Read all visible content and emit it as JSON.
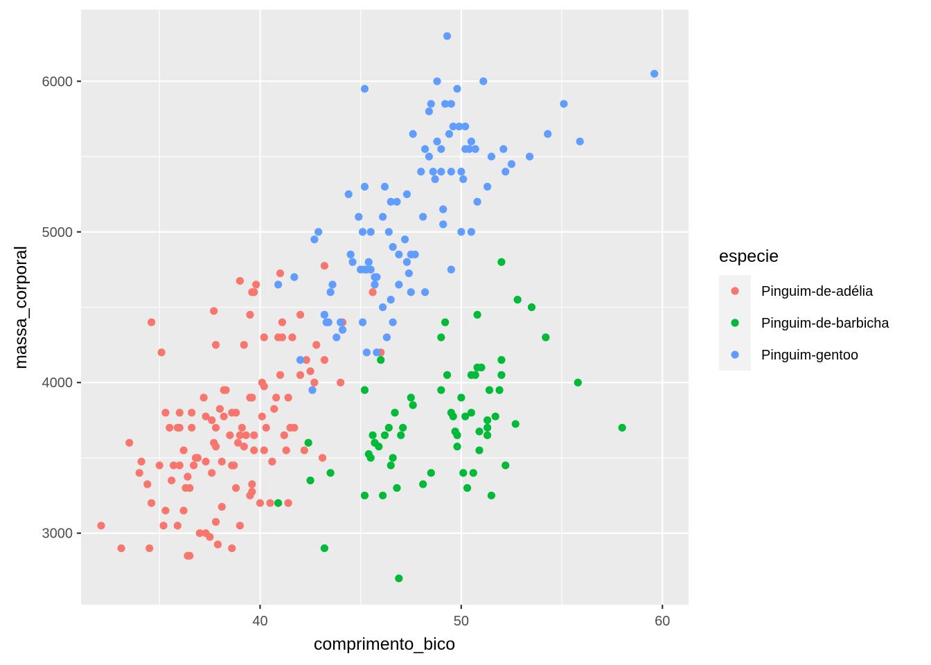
{
  "chart_data": {
    "type": "scatter",
    "xlabel": "comprimento_bico",
    "ylabel": "massa_corporal",
    "xlim": [
      31.1,
      61.3
    ],
    "ylim": [
      2525,
      6475
    ],
    "x_ticks": [
      40,
      50,
      60
    ],
    "x_tick_labels": [
      "40",
      "50",
      "60"
    ],
    "y_ticks": [
      3000,
      4000,
      5000,
      6000
    ],
    "y_tick_labels": [
      "3000",
      "4000",
      "5000",
      "6000"
    ],
    "grid": true,
    "legend": {
      "title": "especie",
      "position": "right"
    },
    "series": [
      {
        "name": "Pinguim-de-adélia",
        "color": "#F8766D",
        "points": [
          [
            32.1,
            3050
          ],
          [
            33.1,
            2900
          ],
          [
            33.5,
            3600
          ],
          [
            34.0,
            3400
          ],
          [
            34.1,
            3475
          ],
          [
            34.4,
            3325
          ],
          [
            34.5,
            2900
          ],
          [
            34.6,
            4400
          ],
          [
            34.6,
            3200
          ],
          [
            35.0,
            3450
          ],
          [
            35.1,
            4200
          ],
          [
            35.2,
            3050
          ],
          [
            35.3,
            3800
          ],
          [
            35.5,
            3700
          ],
          [
            35.6,
            3350
          ],
          [
            35.7,
            3450
          ],
          [
            35.9,
            3050
          ],
          [
            35.9,
            3700
          ],
          [
            36.0,
            3450
          ],
          [
            36.0,
            3800
          ],
          [
            36.2,
            3150
          ],
          [
            36.2,
            3550
          ],
          [
            36.3,
            3300
          ],
          [
            36.4,
            2850
          ],
          [
            36.5,
            2850
          ],
          [
            36.6,
            3800
          ],
          [
            36.6,
            3700
          ],
          [
            36.7,
            3450
          ],
          [
            36.8,
            3500
          ],
          [
            36.9,
            3500
          ],
          [
            37.0,
            3000
          ],
          [
            37.2,
            3900
          ],
          [
            37.3,
            3775
          ],
          [
            37.3,
            3000
          ],
          [
            37.5,
            2975
          ],
          [
            37.6,
            3750
          ],
          [
            37.7,
            3600
          ],
          [
            37.8,
            3075
          ],
          [
            37.8,
            3700
          ],
          [
            37.8,
            4250
          ],
          [
            37.9,
            2925
          ],
          [
            38.0,
            3825
          ],
          [
            38.1,
            3175
          ],
          [
            38.2,
            3950
          ],
          [
            38.3,
            3950
          ],
          [
            38.5,
            3650
          ],
          [
            38.6,
            3800
          ],
          [
            38.6,
            2900
          ],
          [
            38.7,
            3450
          ],
          [
            38.8,
            3800
          ],
          [
            38.9,
            3600
          ],
          [
            39.0,
            3050
          ],
          [
            39.0,
            4675
          ],
          [
            39.1,
            3700
          ],
          [
            39.2,
            4250
          ],
          [
            39.3,
            3650
          ],
          [
            39.5,
            3250
          ],
          [
            39.6,
            3900
          ],
          [
            39.7,
            3550
          ],
          [
            39.8,
            4650
          ],
          [
            40.0,
            3200
          ],
          [
            40.2,
            4300
          ],
          [
            40.3,
            3700
          ],
          [
            40.5,
            3200
          ],
          [
            40.6,
            3475
          ],
          [
            40.8,
            3900
          ],
          [
            41.0,
            4725
          ],
          [
            41.1,
            4300
          ],
          [
            41.3,
            3550
          ],
          [
            41.4,
            3200
          ],
          [
            41.5,
            3700
          ],
          [
            41.6,
            4300
          ],
          [
            42.0,
            4050
          ],
          [
            42.2,
            3550
          ],
          [
            42.3,
            4150
          ],
          [
            42.5,
            4075
          ],
          [
            42.8,
            4250
          ],
          [
            43.1,
            3500
          ],
          [
            43.2,
            4775
          ],
          [
            44.1,
            4400
          ],
          [
            45.6,
            4600
          ],
          [
            46.0,
            4200
          ],
          [
            37.7,
            4475
          ],
          [
            39.6,
            4600
          ],
          [
            38.6,
            3450
          ],
          [
            36.0,
            3700
          ],
          [
            39.5,
            3900
          ],
          [
            40.1,
            4000
          ],
          [
            41.1,
            4400
          ],
          [
            42.0,
            4450
          ],
          [
            39.7,
            4600
          ],
          [
            40.9,
            4300
          ],
          [
            39.5,
            4450
          ],
          [
            41.4,
            3900
          ],
          [
            37.6,
            3400
          ],
          [
            38.8,
            3300
          ],
          [
            41.2,
            3650
          ],
          [
            39.6,
            3275
          ],
          [
            40.7,
            3825
          ],
          [
            44.0,
            4000
          ],
          [
            37.8,
            3575
          ],
          [
            39.2,
            3575
          ],
          [
            38.2,
            3775
          ],
          [
            39.0,
            3650
          ],
          [
            37.3,
            3475
          ],
          [
            40.2,
            3975
          ],
          [
            38.1,
            3475
          ],
          [
            39.7,
            3650
          ],
          [
            41.0,
            4050
          ],
          [
            40.1,
            3775
          ],
          [
            43.2,
            4150
          ],
          [
            41.7,
            3700
          ],
          [
            35.3,
            3150
          ],
          [
            36.4,
            3375
          ],
          [
            39.6,
            3325
          ],
          [
            40.2,
            3550
          ],
          [
            36.5,
            3300
          ],
          [
            40.6,
            3475
          ],
          [
            42.7,
            4000
          ]
        ]
      },
      {
        "name": "Pinguim-de-barbicha",
        "color": "#00BA38",
        "points": [
          [
            40.9,
            3200
          ],
          [
            42.4,
            3600
          ],
          [
            42.5,
            3350
          ],
          [
            43.2,
            2900
          ],
          [
            43.5,
            3400
          ],
          [
            45.2,
            3250
          ],
          [
            45.2,
            3950
          ],
          [
            45.4,
            3525
          ],
          [
            45.5,
            3500
          ],
          [
            45.6,
            3650
          ],
          [
            45.7,
            3600
          ],
          [
            45.9,
            3575
          ],
          [
            46.0,
            4150
          ],
          [
            46.1,
            3250
          ],
          [
            46.2,
            3650
          ],
          [
            46.4,
            3700
          ],
          [
            46.5,
            3450
          ],
          [
            46.6,
            3500
          ],
          [
            46.7,
            3800
          ],
          [
            46.8,
            3300
          ],
          [
            46.9,
            2700
          ],
          [
            47.0,
            3650
          ],
          [
            47.1,
            3700
          ],
          [
            47.5,
            3900
          ],
          [
            47.6,
            3850
          ],
          [
            48.1,
            3325
          ],
          [
            48.5,
            3400
          ],
          [
            49.0,
            3950
          ],
          [
            49.0,
            4300
          ],
          [
            49.2,
            4400
          ],
          [
            49.3,
            4050
          ],
          [
            49.5,
            3800
          ],
          [
            49.6,
            3775
          ],
          [
            49.7,
            3675
          ],
          [
            49.8,
            3575
          ],
          [
            50.0,
            3900
          ],
          [
            50.1,
            3400
          ],
          [
            50.2,
            3775
          ],
          [
            50.3,
            3300
          ],
          [
            50.5,
            3800
          ],
          [
            50.5,
            4050
          ],
          [
            50.6,
            3400
          ],
          [
            50.7,
            4050
          ],
          [
            50.8,
            4450
          ],
          [
            50.8,
            4100
          ],
          [
            50.9,
            3550
          ],
          [
            51.0,
            4100
          ],
          [
            51.3,
            3700
          ],
          [
            51.3,
            3650
          ],
          [
            51.4,
            3950
          ],
          [
            51.5,
            3250
          ],
          [
            51.7,
            3775
          ],
          [
            51.9,
            3950
          ],
          [
            52.0,
            4800
          ],
          [
            52.0,
            4150
          ],
          [
            52.0,
            4050
          ],
          [
            52.2,
            3450
          ],
          [
            52.7,
            3725
          ],
          [
            52.8,
            4550
          ],
          [
            53.5,
            4500
          ],
          [
            54.2,
            4300
          ],
          [
            55.8,
            4000
          ],
          [
            58.0,
            3700
          ],
          [
            50.9,
            3675
          ],
          [
            51.3,
            3750
          ],
          [
            49.8,
            3650
          ]
        ]
      },
      {
        "name": "Pinguim-gentoo",
        "color": "#619CFF",
        "points": [
          [
            40.9,
            4650
          ],
          [
            41.7,
            4700
          ],
          [
            42.0,
            4150
          ],
          [
            42.6,
            3950
          ],
          [
            42.7,
            4950
          ],
          [
            42.9,
            5000
          ],
          [
            43.2,
            4450
          ],
          [
            43.3,
            4400
          ],
          [
            43.5,
            4600
          ],
          [
            43.6,
            4650
          ],
          [
            44.0,
            4400
          ],
          [
            44.4,
            5250
          ],
          [
            44.5,
            4850
          ],
          [
            44.9,
            5100
          ],
          [
            45.0,
            4750
          ],
          [
            45.1,
            5000
          ],
          [
            45.2,
            5950
          ],
          [
            45.2,
            5300
          ],
          [
            45.3,
            4200
          ],
          [
            45.4,
            4800
          ],
          [
            45.5,
            5000
          ],
          [
            45.7,
            4700
          ],
          [
            45.8,
            4200
          ],
          [
            46.1,
            5100
          ],
          [
            46.2,
            5300
          ],
          [
            46.4,
            5000
          ],
          [
            46.5,
            4550
          ],
          [
            46.6,
            4900
          ],
          [
            46.8,
            5200
          ],
          [
            46.9,
            4850
          ],
          [
            47.2,
            4950
          ],
          [
            47.3,
            5250
          ],
          [
            47.4,
            4725
          ],
          [
            47.5,
            4600
          ],
          [
            47.7,
            4850
          ],
          [
            48.1,
            5100
          ],
          [
            48.2,
            4600
          ],
          [
            48.4,
            5800
          ],
          [
            48.5,
            5850
          ],
          [
            48.7,
            5350
          ],
          [
            48.8,
            6000
          ],
          [
            49.0,
            5550
          ],
          [
            49.1,
            5050
          ],
          [
            49.2,
            5850
          ],
          [
            49.3,
            6300
          ],
          [
            49.4,
            5650
          ],
          [
            49.5,
            4750
          ],
          [
            49.6,
            5700
          ],
          [
            49.8,
            5950
          ],
          [
            50.0,
            5000
          ],
          [
            50.1,
            5350
          ],
          [
            50.4,
            5550
          ],
          [
            50.5,
            5000
          ],
          [
            50.7,
            5550
          ],
          [
            50.8,
            5200
          ],
          [
            51.1,
            6000
          ],
          [
            51.3,
            5300
          ],
          [
            51.5,
            5500
          ],
          [
            52.1,
            5550
          ],
          [
            52.2,
            5400
          ],
          [
            52.5,
            5450
          ],
          [
            53.4,
            5500
          ],
          [
            54.3,
            5650
          ],
          [
            55.1,
            5850
          ],
          [
            55.9,
            5600
          ],
          [
            59.6,
            6050
          ],
          [
            46.3,
            4300
          ],
          [
            45.1,
            4400
          ],
          [
            44.1,
            4350
          ],
          [
            47.3,
            4800
          ],
          [
            48.2,
            5550
          ],
          [
            50.0,
            5400
          ],
          [
            49.5,
            5850
          ],
          [
            48.6,
            5400
          ],
          [
            50.2,
            5700
          ],
          [
            49.9,
            5700
          ],
          [
            46.6,
            4400
          ],
          [
            43.4,
            4400
          ],
          [
            45.7,
            4650
          ],
          [
            47.6,
            5650
          ],
          [
            48.8,
            5600
          ],
          [
            45.3,
            4750
          ],
          [
            46.9,
            4650
          ],
          [
            48.4,
            5500
          ],
          [
            46.1,
            4500
          ],
          [
            45.5,
            4750
          ],
          [
            50.5,
            5600
          ],
          [
            49.1,
            5150
          ],
          [
            49.0,
            5400
          ],
          [
            46.5,
            5200
          ],
          [
            45.8,
            4700
          ],
          [
            49.5,
            5400
          ],
          [
            47.5,
            4850
          ],
          [
            48.0,
            5400
          ],
          [
            50.2,
            5550
          ],
          [
            45.2,
            4750
          ],
          [
            43.8,
            4300
          ],
          [
            44.6,
            4800
          ]
        ]
      }
    ]
  }
}
